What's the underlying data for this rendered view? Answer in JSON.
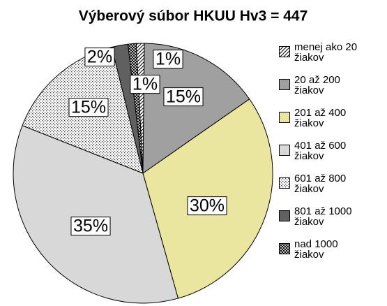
{
  "chart_data": {
    "type": "pie",
    "title": "Výberový súbor HKUU Hv3 = 447",
    "categories": [
      "menej ako 20 žiakov",
      "20 až 200 žiakov",
      "201 až 400 žiakov",
      "401 až 600 žiakov",
      "601 až 800 žiakov",
      "801 až 1000 žiakov",
      "nad 1000 žiakov"
    ],
    "values": [
      1,
      15,
      30,
      35,
      15,
      2,
      1
    ],
    "value_labels": [
      "1%",
      "15%",
      "30%",
      "35%",
      "15%",
      "2%",
      "1%"
    ],
    "colors": [
      "#ffffff",
      "#a0a0a0",
      "#eae6a0",
      "#d8d8d8",
      "#ffffff",
      "#606060",
      "#ffffff"
    ],
    "patterns": [
      "diagonal",
      null,
      null,
      null,
      "dots",
      null,
      "crosshatch"
    ],
    "legend": "right"
  }
}
